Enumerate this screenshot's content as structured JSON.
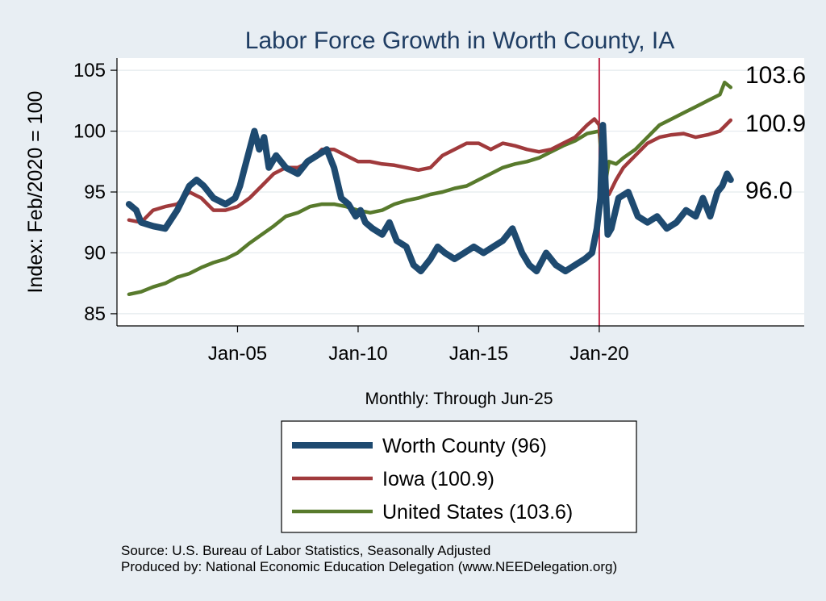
{
  "chart_data": {
    "type": "line",
    "title": "Labor Force Growth in Worth  County, IA",
    "ylabel": "Index: Feb/2020 = 100",
    "xlabel": "Monthly: Through Jun-25",
    "ylim": [
      84,
      106
    ],
    "yticks": [
      "85",
      "90",
      "95",
      "100",
      "105"
    ],
    "xlim": [
      2000.0,
      2028.5
    ],
    "xticks": [
      {
        "value": 2005.0,
        "label": "Jan-05"
      },
      {
        "value": 2010.0,
        "label": "Jan-10"
      },
      {
        "value": 2015.0,
        "label": "Jan-15"
      },
      {
        "value": 2020.0,
        "label": "Jan-20"
      }
    ],
    "vline": {
      "x": 2020.0,
      "color": "#c0284a"
    },
    "series": [
      {
        "name": "Worth  County",
        "legend": "Worth  County (96)",
        "end_label": "96.0",
        "color": "#1e4a70",
        "width": 8,
        "x": [
          2000.5,
          2000.8,
          2001.0,
          2001.5,
          2002.0,
          2002.5,
          2003.0,
          2003.3,
          2003.6,
          2004.0,
          2004.5,
          2004.9,
          2005.1,
          2005.3,
          2005.5,
          2005.7,
          2005.9,
          2006.1,
          2006.3,
          2006.6,
          2007.0,
          2007.5,
          2007.9,
          2008.3,
          2008.7,
          2009.0,
          2009.3,
          2009.6,
          2009.9,
          2010.1,
          2010.3,
          2010.6,
          2011.0,
          2011.3,
          2011.6,
          2012.0,
          2012.3,
          2012.6,
          2013.0,
          2013.3,
          2013.6,
          2014.0,
          2014.4,
          2014.8,
          2015.2,
          2015.6,
          2016.0,
          2016.4,
          2016.8,
          2017.1,
          2017.4,
          2017.8,
          2018.2,
          2018.6,
          2019.0,
          2019.4,
          2019.7,
          2019.9,
          2020.05,
          2020.15,
          2020.25,
          2020.35,
          2020.5,
          2020.8,
          2021.2,
          2021.6,
          2022.0,
          2022.4,
          2022.8,
          2023.2,
          2023.6,
          2024.0,
          2024.3,
          2024.6,
          2024.9,
          2025.1,
          2025.3,
          2025.45
        ],
        "values": [
          94.0,
          93.5,
          92.5,
          92.2,
          92.0,
          93.5,
          95.5,
          96.0,
          95.5,
          94.5,
          94.0,
          94.5,
          95.5,
          97.0,
          98.5,
          100.0,
          98.5,
          99.5,
          97.0,
          98.0,
          97.0,
          96.5,
          97.5,
          98.0,
          98.5,
          97.0,
          94.5,
          94.0,
          93.0,
          93.5,
          92.5,
          92.0,
          91.5,
          92.5,
          91.0,
          90.5,
          89.0,
          88.5,
          89.5,
          90.5,
          90.0,
          89.5,
          90.0,
          90.5,
          90.0,
          90.5,
          91.0,
          92.0,
          90.0,
          89.0,
          88.5,
          90.0,
          89.0,
          88.5,
          89.0,
          89.5,
          90.0,
          92.0,
          94.5,
          100.5,
          96.0,
          91.5,
          92.0,
          94.5,
          95.0,
          93.0,
          92.5,
          93.0,
          92.0,
          92.5,
          93.5,
          93.0,
          94.5,
          93.0,
          95.0,
          95.5,
          96.5,
          96.0
        ]
      },
      {
        "name": "Iowa",
        "legend": "Iowa (100.9)",
        "end_label": "100.9",
        "color": "#a03a3c",
        "width": 4.5,
        "x": [
          2000.5,
          2001.0,
          2001.5,
          2002.0,
          2002.5,
          2003.0,
          2003.5,
          2004.0,
          2004.5,
          2005.0,
          2005.5,
          2006.0,
          2006.5,
          2007.0,
          2007.5,
          2008.0,
          2008.5,
          2009.0,
          2009.5,
          2010.0,
          2010.5,
          2011.0,
          2011.5,
          2012.0,
          2012.5,
          2013.0,
          2013.5,
          2014.0,
          2014.5,
          2015.0,
          2015.5,
          2016.0,
          2016.5,
          2017.0,
          2017.5,
          2018.0,
          2018.5,
          2019.0,
          2019.5,
          2019.8,
          2020.0,
          2020.1,
          2020.2,
          2020.4,
          2020.7,
          2021.0,
          2021.5,
          2022.0,
          2022.5,
          2023.0,
          2023.5,
          2024.0,
          2024.5,
          2025.0,
          2025.45
        ],
        "values": [
          92.7,
          92.5,
          93.5,
          93.8,
          94.0,
          95.0,
          94.5,
          93.5,
          93.5,
          93.8,
          94.5,
          95.5,
          96.5,
          97.0,
          97.0,
          97.5,
          98.5,
          98.5,
          98.0,
          97.5,
          97.5,
          97.3,
          97.2,
          97.0,
          96.8,
          97.0,
          98.0,
          98.5,
          99.0,
          99.0,
          98.5,
          99.0,
          98.8,
          98.5,
          98.3,
          98.5,
          99.0,
          99.5,
          100.5,
          101.0,
          100.5,
          98.0,
          95.5,
          94.8,
          96.0,
          97.0,
          98.0,
          99.0,
          99.5,
          99.7,
          99.8,
          99.5,
          99.7,
          100.0,
          100.9
        ]
      },
      {
        "name": "United States",
        "legend": "United States (103.6)",
        "end_label": "103.6",
        "color": "#587a2c",
        "width": 4.5,
        "x": [
          2000.5,
          2001.0,
          2001.5,
          2002.0,
          2002.5,
          2003.0,
          2003.5,
          2004.0,
          2004.5,
          2005.0,
          2005.5,
          2006.0,
          2006.5,
          2007.0,
          2007.5,
          2008.0,
          2008.5,
          2009.0,
          2009.5,
          2010.0,
          2010.5,
          2011.0,
          2011.5,
          2012.0,
          2012.5,
          2013.0,
          2013.5,
          2014.0,
          2014.5,
          2015.0,
          2015.5,
          2016.0,
          2016.5,
          2017.0,
          2017.5,
          2018.0,
          2018.5,
          2019.0,
          2019.5,
          2020.0,
          2020.2,
          2020.4,
          2020.7,
          2021.0,
          2021.5,
          2022.0,
          2022.5,
          2023.0,
          2023.5,
          2024.0,
          2024.5,
          2025.0,
          2025.2,
          2025.45
        ],
        "values": [
          86.6,
          86.8,
          87.2,
          87.5,
          88.0,
          88.3,
          88.8,
          89.2,
          89.5,
          90.0,
          90.8,
          91.5,
          92.2,
          93.0,
          93.3,
          93.8,
          94.0,
          94.0,
          93.8,
          93.5,
          93.3,
          93.5,
          94.0,
          94.3,
          94.5,
          94.8,
          95.0,
          95.3,
          95.5,
          96.0,
          96.5,
          97.0,
          97.3,
          97.5,
          97.8,
          98.3,
          98.8,
          99.2,
          99.8,
          100.0,
          95.0,
          97.5,
          97.3,
          97.8,
          98.5,
          99.5,
          100.5,
          101.0,
          101.5,
          102.0,
          102.5,
          103.0,
          104.0,
          103.6
        ]
      }
    ]
  },
  "source_line": "Source: U.S. Bureau of Labor Statistics, Seasonally Adjusted",
  "produced_line": "Produced by: National Economic Education Delegation (www.NEEDelegation.org)"
}
